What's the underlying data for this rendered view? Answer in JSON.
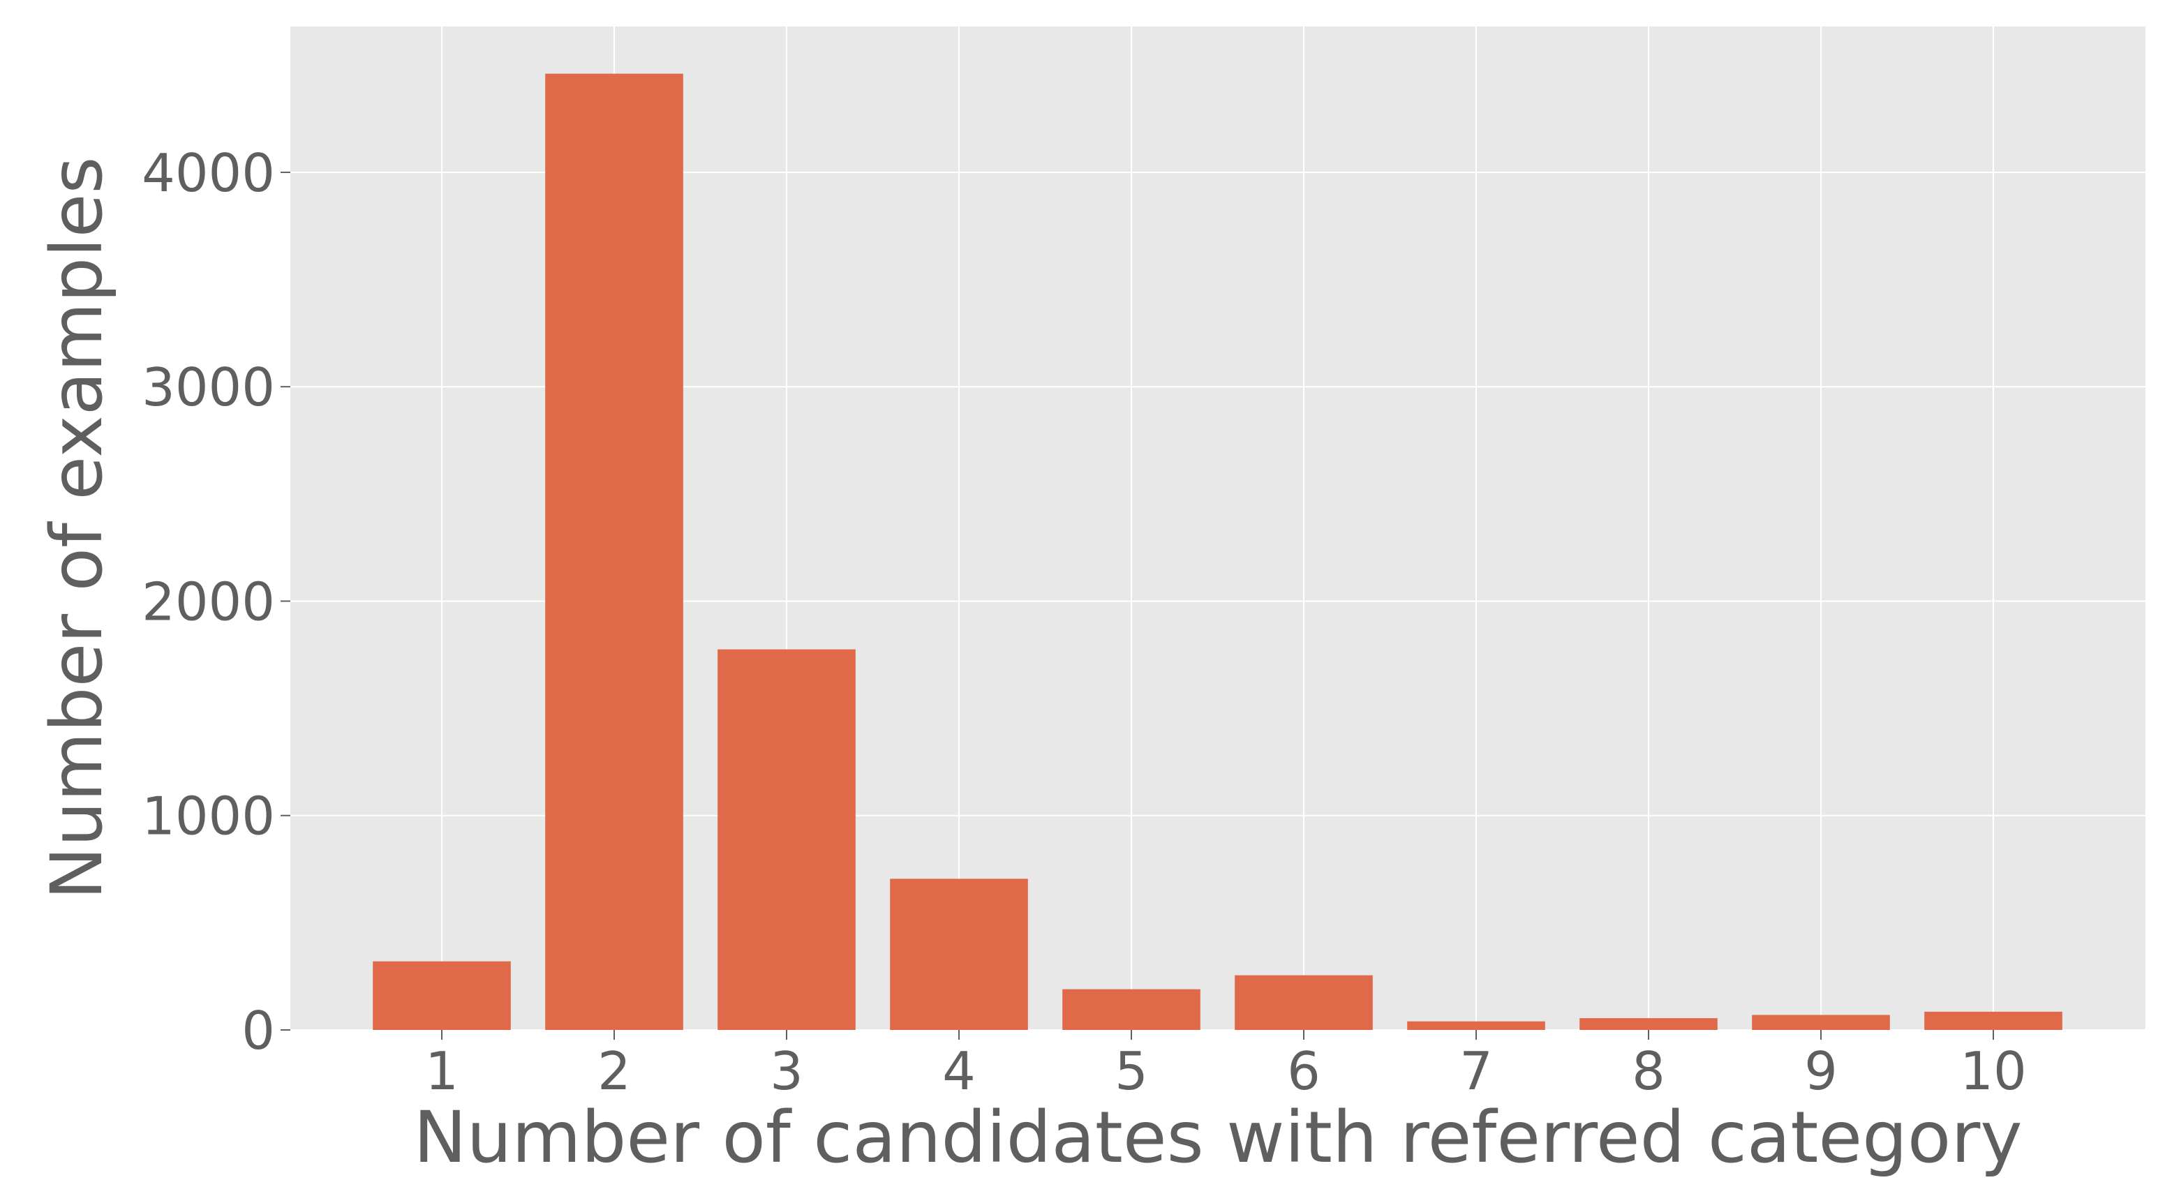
{
  "chart_data": {
    "type": "bar",
    "categories": [
      "1",
      "2",
      "3",
      "4",
      "5",
      "6",
      "7",
      "8",
      "9",
      "10"
    ],
    "values": [
      320,
      4460,
      1775,
      705,
      190,
      255,
      40,
      55,
      70,
      85
    ],
    "xlabel": "Number of candidates with referred category",
    "ylabel": "Number of examples",
    "ylim": [
      0,
      4680
    ],
    "yticks": [
      0,
      1000,
      2000,
      3000,
      4000
    ],
    "ytick_labels": [
      "0",
      "1000",
      "2000",
      "3000",
      "4000"
    ],
    "grid": true,
    "colors": {
      "bar": "#e0694a",
      "plot_background": "#e8e8e8",
      "grid": "#ffffff",
      "text": "#5f5f5f"
    }
  }
}
